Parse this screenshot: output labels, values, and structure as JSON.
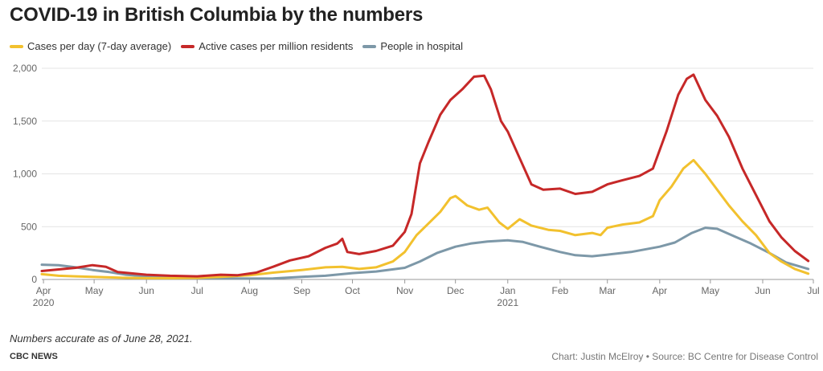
{
  "header": {
    "title": "COVID-19 in British Columbia by the numbers"
  },
  "footer": {
    "note": "Numbers accurate as of June 28, 2021.",
    "org": "CBC NEWS",
    "credit": "Chart: Justin McElroy • Source: BC Centre for Disease Control"
  },
  "chart_data": {
    "type": "line",
    "title": "COVID-19 in British Columbia by the numbers",
    "xlabel": "",
    "ylabel": "",
    "ylim": [
      0,
      2000
    ],
    "xlim": [
      "2020-03-31",
      "2021-07-01"
    ],
    "grid": true,
    "legend_position": "top-left",
    "y_ticks": [
      {
        "value": 0,
        "label": "0"
      },
      {
        "value": 500,
        "label": "500"
      },
      {
        "value": 1000,
        "label": "1,000"
      },
      {
        "value": 1500,
        "label": "1,500"
      },
      {
        "value": 2000,
        "label": "2,000"
      }
    ],
    "x_ticks": [
      {
        "date": "2020-04-01",
        "label": "Apr",
        "sublabel": "2020"
      },
      {
        "date": "2020-05-01",
        "label": "May",
        "sublabel": ""
      },
      {
        "date": "2020-06-01",
        "label": "Jun",
        "sublabel": ""
      },
      {
        "date": "2020-07-01",
        "label": "Jul",
        "sublabel": ""
      },
      {
        "date": "2020-08-01",
        "label": "Aug",
        "sublabel": ""
      },
      {
        "date": "2020-09-01",
        "label": "Sep",
        "sublabel": ""
      },
      {
        "date": "2020-10-01",
        "label": "Oct",
        "sublabel": ""
      },
      {
        "date": "2020-11-01",
        "label": "Nov",
        "sublabel": ""
      },
      {
        "date": "2020-12-01",
        "label": "Dec",
        "sublabel": ""
      },
      {
        "date": "2021-01-01",
        "label": "Jan",
        "sublabel": "2021"
      },
      {
        "date": "2021-02-01",
        "label": "Feb",
        "sublabel": ""
      },
      {
        "date": "2021-03-01",
        "label": "Mar",
        "sublabel": ""
      },
      {
        "date": "2021-04-01",
        "label": "Apr",
        "sublabel": ""
      },
      {
        "date": "2021-05-01",
        "label": "May",
        "sublabel": ""
      },
      {
        "date": "2021-06-01",
        "label": "Jun",
        "sublabel": ""
      },
      {
        "date": "2021-07-01",
        "label": "Jul",
        "sublabel": ""
      }
    ],
    "series": [
      {
        "name": "Cases per day (7-day average)",
        "color": "#f2c12e",
        "points": [
          [
            "2020-03-31",
            50
          ],
          [
            "2020-04-10",
            35
          ],
          [
            "2020-04-20",
            30
          ],
          [
            "2020-04-30",
            25
          ],
          [
            "2020-05-10",
            20
          ],
          [
            "2020-05-20",
            15
          ],
          [
            "2020-06-01",
            12
          ],
          [
            "2020-06-15",
            12
          ],
          [
            "2020-07-01",
            15
          ],
          [
            "2020-07-15",
            25
          ],
          [
            "2020-08-01",
            40
          ],
          [
            "2020-08-15",
            65
          ],
          [
            "2020-09-01",
            90
          ],
          [
            "2020-09-15",
            115
          ],
          [
            "2020-09-25",
            120
          ],
          [
            "2020-10-05",
            100
          ],
          [
            "2020-10-15",
            115
          ],
          [
            "2020-10-25",
            170
          ],
          [
            "2020-11-01",
            260
          ],
          [
            "2020-11-08",
            420
          ],
          [
            "2020-11-15",
            530
          ],
          [
            "2020-11-22",
            640
          ],
          [
            "2020-11-28",
            770
          ],
          [
            "2020-12-01",
            790
          ],
          [
            "2020-12-08",
            700
          ],
          [
            "2020-12-15",
            660
          ],
          [
            "2020-12-20",
            680
          ],
          [
            "2020-12-27",
            540
          ],
          [
            "2021-01-01",
            480
          ],
          [
            "2021-01-08",
            570
          ],
          [
            "2021-01-15",
            510
          ],
          [
            "2021-01-25",
            470
          ],
          [
            "2021-02-01",
            460
          ],
          [
            "2021-02-10",
            420
          ],
          [
            "2021-02-20",
            440
          ],
          [
            "2021-02-25",
            420
          ],
          [
            "2021-03-01",
            490
          ],
          [
            "2021-03-10",
            520
          ],
          [
            "2021-03-20",
            540
          ],
          [
            "2021-03-28",
            600
          ],
          [
            "2021-04-01",
            750
          ],
          [
            "2021-04-08",
            880
          ],
          [
            "2021-04-15",
            1050
          ],
          [
            "2021-04-21",
            1130
          ],
          [
            "2021-04-28",
            1000
          ],
          [
            "2021-05-05",
            850
          ],
          [
            "2021-05-12",
            700
          ],
          [
            "2021-05-20",
            550
          ],
          [
            "2021-05-28",
            420
          ],
          [
            "2021-06-05",
            250
          ],
          [
            "2021-06-12",
            170
          ],
          [
            "2021-06-20",
            100
          ],
          [
            "2021-06-28",
            55
          ]
        ]
      },
      {
        "name": "Active cases per million residents",
        "color": "#c62828",
        "points": [
          [
            "2020-03-31",
            80
          ],
          [
            "2020-04-10",
            95
          ],
          [
            "2020-04-20",
            110
          ],
          [
            "2020-04-30",
            135
          ],
          [
            "2020-05-08",
            120
          ],
          [
            "2020-05-15",
            70
          ],
          [
            "2020-06-01",
            45
          ],
          [
            "2020-06-15",
            35
          ],
          [
            "2020-07-01",
            30
          ],
          [
            "2020-07-15",
            45
          ],
          [
            "2020-07-25",
            40
          ],
          [
            "2020-08-05",
            65
          ],
          [
            "2020-08-15",
            120
          ],
          [
            "2020-08-25",
            180
          ],
          [
            "2020-09-05",
            220
          ],
          [
            "2020-09-15",
            300
          ],
          [
            "2020-09-22",
            340
          ],
          [
            "2020-09-25",
            385
          ],
          [
            "2020-09-28",
            260
          ],
          [
            "2020-10-05",
            240
          ],
          [
            "2020-10-15",
            270
          ],
          [
            "2020-10-25",
            320
          ],
          [
            "2020-11-01",
            450
          ],
          [
            "2020-11-05",
            620
          ],
          [
            "2020-11-10",
            1100
          ],
          [
            "2020-11-15",
            1300
          ],
          [
            "2020-11-22",
            1560
          ],
          [
            "2020-11-28",
            1700
          ],
          [
            "2020-12-05",
            1800
          ],
          [
            "2020-12-12",
            1920
          ],
          [
            "2020-12-18",
            1930
          ],
          [
            "2020-12-22",
            1800
          ],
          [
            "2020-12-28",
            1500
          ],
          [
            "2021-01-01",
            1400
          ],
          [
            "2021-01-08",
            1150
          ],
          [
            "2021-01-15",
            900
          ],
          [
            "2021-01-22",
            850
          ],
          [
            "2021-02-01",
            860
          ],
          [
            "2021-02-10",
            810
          ],
          [
            "2021-02-20",
            830
          ],
          [
            "2021-03-01",
            900
          ],
          [
            "2021-03-10",
            940
          ],
          [
            "2021-03-20",
            980
          ],
          [
            "2021-03-28",
            1050
          ],
          [
            "2021-04-05",
            1400
          ],
          [
            "2021-04-12",
            1750
          ],
          [
            "2021-04-17",
            1900
          ],
          [
            "2021-04-21",
            1940
          ],
          [
            "2021-04-28",
            1700
          ],
          [
            "2021-05-05",
            1550
          ],
          [
            "2021-05-12",
            1350
          ],
          [
            "2021-05-20",
            1050
          ],
          [
            "2021-05-28",
            800
          ],
          [
            "2021-06-05",
            550
          ],
          [
            "2021-06-12",
            400
          ],
          [
            "2021-06-20",
            270
          ],
          [
            "2021-06-28",
            175
          ]
        ]
      },
      {
        "name": "People in hospital",
        "color": "#7d98a8",
        "points": [
          [
            "2020-03-31",
            140
          ],
          [
            "2020-04-10",
            135
          ],
          [
            "2020-04-20",
            115
          ],
          [
            "2020-04-30",
            90
          ],
          [
            "2020-05-10",
            70
          ],
          [
            "2020-05-20",
            45
          ],
          [
            "2020-06-01",
            30
          ],
          [
            "2020-06-15",
            20
          ],
          [
            "2020-07-01",
            15
          ],
          [
            "2020-07-15",
            10
          ],
          [
            "2020-08-01",
            8
          ],
          [
            "2020-08-15",
            10
          ],
          [
            "2020-09-01",
            25
          ],
          [
            "2020-09-15",
            35
          ],
          [
            "2020-10-01",
            60
          ],
          [
            "2020-10-15",
            75
          ],
          [
            "2020-11-01",
            110
          ],
          [
            "2020-11-10",
            170
          ],
          [
            "2020-11-20",
            250
          ],
          [
            "2020-12-01",
            310
          ],
          [
            "2020-12-10",
            340
          ],
          [
            "2020-12-20",
            360
          ],
          [
            "2021-01-01",
            370
          ],
          [
            "2021-01-10",
            355
          ],
          [
            "2021-01-20",
            310
          ],
          [
            "2021-02-01",
            260
          ],
          [
            "2021-02-10",
            230
          ],
          [
            "2021-02-20",
            220
          ],
          [
            "2021-03-01",
            235
          ],
          [
            "2021-03-15",
            260
          ],
          [
            "2021-04-01",
            310
          ],
          [
            "2021-04-10",
            350
          ],
          [
            "2021-04-20",
            440
          ],
          [
            "2021-04-28",
            490
          ],
          [
            "2021-05-05",
            480
          ],
          [
            "2021-05-15",
            410
          ],
          [
            "2021-05-25",
            340
          ],
          [
            "2021-06-05",
            250
          ],
          [
            "2021-06-15",
            160
          ],
          [
            "2021-06-28",
            100
          ]
        ]
      }
    ]
  }
}
